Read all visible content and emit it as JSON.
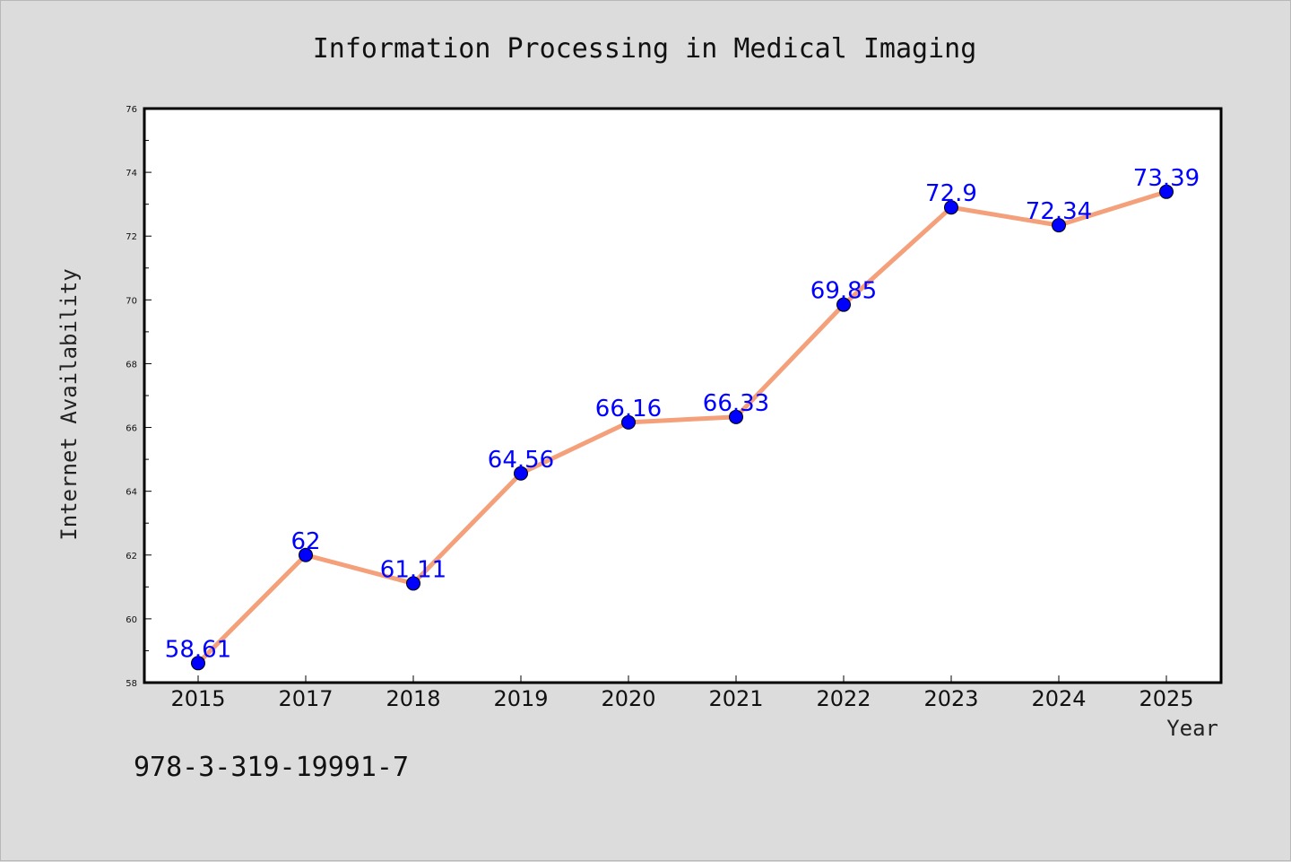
{
  "footnote": "978-3-319-19991-7",
  "colors": {
    "background": "#dcdcdc",
    "plot_background": "#ffffff",
    "line": "#f4a07a",
    "marker": "#0000ff",
    "label": "#0000ff"
  },
  "chart_data": {
    "type": "line",
    "title": "Information Processing in Medical Imaging",
    "xlabel": "Year",
    "ylabel": "Internet Availability",
    "categories": [
      "2015",
      "2017",
      "2018",
      "2019",
      "2020",
      "2021",
      "2022",
      "2023",
      "2024",
      "2025"
    ],
    "series": [
      {
        "values": [
          58.61,
          62,
          61.11,
          64.56,
          66.16,
          66.33,
          69.85,
          72.9,
          72.34,
          73.39
        ],
        "labels": [
          "58.61",
          "62",
          "61.11",
          "64.56",
          "66.16",
          "66.33",
          "69.85",
          "72.9",
          "72.34",
          "73.39"
        ]
      }
    ],
    "ylim": [
      58,
      76
    ],
    "yticks": [
      "58",
      "60",
      "62",
      "64",
      "66",
      "68",
      "70",
      "72",
      "74",
      "76"
    ],
    "grid": false,
    "legend": "none"
  }
}
